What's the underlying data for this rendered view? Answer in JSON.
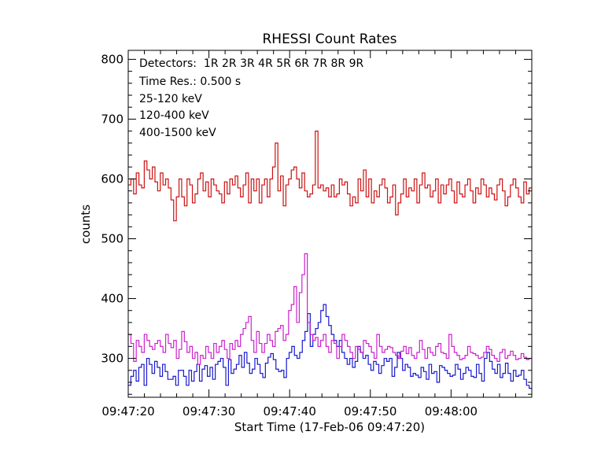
{
  "chart_data": {
    "type": "line",
    "title": "RHESSI Count Rates",
    "xlabel": "Start Time (17-Feb-06 09:47:20)",
    "ylabel": "counts",
    "ylim": [
      235,
      815
    ],
    "xlim_seconds": [
      0,
      50
    ],
    "x_tick_labels": [
      "09:47:20",
      "09:47:30",
      "09:47:40",
      "09:47:50",
      "09:48:00"
    ],
    "y_tick_labels": [
      "300",
      "400",
      "500",
      "600",
      "700",
      "800"
    ],
    "annotations": {
      "detectors": "Detectors:  1R 2R 3R 4R 5R 6R 7R 8R 9R",
      "time_res": "Time Res.: 0.500 s"
    },
    "series": [
      {
        "name": "25-120 keV",
        "color": "#1a1acc",
        "values": [
          255,
          270,
          280,
          262,
          285,
          290,
          255,
          300,
          290,
          275,
          295,
          285,
          270,
          290,
          278,
          265,
          265,
          270,
          255,
          280,
          280,
          270,
          255,
          280,
          262,
          278,
          290,
          262,
          282,
          288,
          270,
          285,
          265,
          290,
          295,
          300,
          285,
          255,
          298,
          275,
          282,
          290,
          305,
          285,
          310,
          292,
          275,
          282,
          300,
          290,
          275,
          268,
          292,
          302,
          308,
          298,
          282,
          278,
          280,
          268,
          300,
          310,
          320,
          305,
          300,
          310,
          330,
          345,
          375,
          320,
          340,
          350,
          360,
          380,
          390,
          370,
          355,
          340,
          330,
          320,
          330,
          310,
          300,
          290,
          300,
          285,
          295,
          320,
          310,
          300,
          305,
          290,
          280,
          295,
          290,
          275,
          288,
          300,
          295,
          300,
          270,
          285,
          310,
          300,
          280,
          290,
          285,
          270,
          275,
          272,
          268,
          285,
          278,
          265,
          290,
          275,
          278,
          260,
          288,
          285,
          280,
          275,
          270,
          272,
          290,
          282,
          265,
          275,
          285,
          280,
          270,
          268,
          290,
          275,
          262,
          300,
          310,
          295,
          282,
          275,
          290,
          268,
          275,
          292,
          275,
          262,
          280,
          270,
          272,
          280,
          265,
          255,
          250
        ]
      },
      {
        "name": "120-400 keV",
        "color": "#cc22cc",
        "values": [
          340,
          325,
          295,
          330,
          320,
          310,
          340,
          330,
          320,
          315,
          325,
          330,
          320,
          310,
          340,
          325,
          318,
          330,
          300,
          315,
          345,
          328,
          310,
          320,
          300,
          310,
          290,
          305,
          300,
          320,
          310,
          300,
          325,
          310,
          320,
          330,
          315,
          300,
          325,
          315,
          330,
          320,
          340,
          350,
          360,
          370,
          330,
          310,
          345,
          325,
          310,
          325,
          340,
          330,
          320,
          345,
          350,
          355,
          330,
          340,
          380,
          390,
          420,
          360,
          410,
          440,
          475,
          360,
          340,
          330,
          335,
          320,
          330,
          340,
          320,
          310,
          330,
          325,
          300,
          320,
          340,
          330,
          320,
          310,
          300,
          320,
          315,
          310,
          330,
          325,
          320,
          310,
          300,
          340,
          320,
          310,
          315,
          320,
          318,
          310,
          305,
          300,
          312,
          320,
          308,
          318,
          305,
          300,
          310,
          330,
          315,
          300,
          318,
          310,
          305,
          320,
          325,
          310,
          308,
          300,
          340,
          320,
          310,
          305,
          298,
          300,
          305,
          320,
          310,
          308,
          305,
          300,
          302,
          310,
          320,
          315,
          305,
          300,
          295,
          310,
          315,
          300,
          305,
          312,
          305,
          298,
          300,
          308,
          302,
          298,
          300
        ]
      },
      {
        "name": "400-1500 keV",
        "color": "#cc1111",
        "values": [
          590,
          600,
          575,
          610,
          590,
          585,
          630,
          615,
          600,
          620,
          595,
          580,
          610,
          590,
          600,
          585,
          565,
          530,
          570,
          600,
          570,
          555,
          600,
          590,
          560,
          575,
          600,
          610,
          580,
          595,
          570,
          600,
          590,
          580,
          575,
          560,
          595,
          575,
          600,
          590,
          605,
          585,
          570,
          590,
          610,
          560,
          600,
          580,
          600,
          560,
          590,
          600,
          570,
          600,
          620,
          660,
          580,
          605,
          555,
          590,
          600,
          615,
          620,
          600,
          585,
          610,
          580,
          570,
          575,
          590,
          680,
          585,
          590,
          580,
          585,
          570,
          590,
          570,
          575,
          600,
          590,
          595,
          575,
          555,
          570,
          560,
          600,
          580,
          615,
          570,
          600,
          560,
          580,
          570,
          590,
          600,
          585,
          560,
          570,
          590,
          540,
          560,
          575,
          600,
          570,
          585,
          580,
          600,
          560,
          590,
          610,
          585,
          590,
          570,
          580,
          600,
          560,
          590,
          575,
          590,
          600,
          580,
          560,
          595,
          575,
          570,
          590,
          600,
          580,
          560,
          585,
          575,
          600,
          590,
          570,
          585,
          575,
          565,
          590,
          600,
          580,
          555,
          570,
          590,
          600,
          585,
          570,
          560,
          595,
          575,
          585
        ]
      }
    ]
  }
}
